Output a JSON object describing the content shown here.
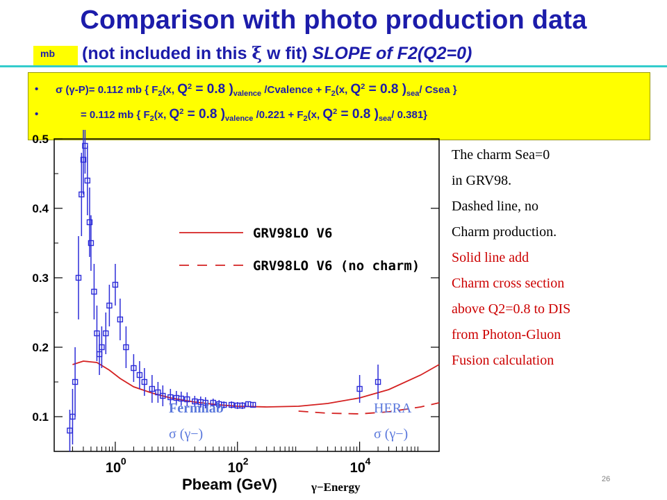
{
  "slide": {
    "title": "Comparison with photo production data",
    "mb_label": "mb",
    "subtitle_a": "(not included in this  ",
    "xi_symbol": "ξ",
    "subtitle_b": " w fit) ",
    "subtitle_c": "SLOPE of F2(Q2=0)",
    "page_number": "26"
  },
  "formula": {
    "line1": {
      "bullet": "•",
      "sigma": "σ (γ-P)= 0.112 mb { F",
      "sub2a": "2",
      "t1": "(x, ",
      "q": "Q",
      "sup2a": "2",
      "t2": " = 0.8 )",
      "subval": "valence",
      "t3": " /Cvalence +   F",
      "sub2b": "2",
      "t4": "(x, ",
      "q2": "Q",
      "sup2b": "2",
      "t5": " = 0.8 )",
      "subsea": "sea",
      "t6": "/ Csea }"
    },
    "line2": {
      "bullet": "•",
      "t0": "= 0.112 mb { F",
      "sub2a": "2",
      "t1": "(x, ",
      "q": "Q",
      "sup2a": "2",
      "t2": " = 0.8 )",
      "subval": "valence",
      "t3": " /0.221  +   F",
      "sub2b": "2",
      "t4": "(x, ",
      "q2": "Q",
      "sup2b": "2",
      "t5": " = 0.8 )",
      "subsea": "sea",
      "t6": "/ 0.381}"
    }
  },
  "side_notes": [
    {
      "text": "The charm Sea=0",
      "color": "#000000"
    },
    {
      "text": "in GRV98.",
      "color": "#000000"
    },
    {
      "text": "Dashed line, no",
      "color": "#000000"
    },
    {
      "text": "Charm production.",
      "color": "#000000"
    },
    {
      "text": "Solid line add",
      "color": "#cc0000"
    },
    {
      "text": "Charm cross section",
      "color": "#cc0000"
    },
    {
      "text": "above Q2=0.8 to DIS",
      "color": "#cc0000"
    },
    {
      "text": " from  Photon-Gluon",
      "color": "#cc0000"
    },
    {
      "text": "Fusion calculation",
      "color": "#cc0000"
    }
  ],
  "annotations": {
    "fermilab": "Fermilab",
    "fermilab_sigma": "σ (γ−)",
    "hera": "HERA",
    "hera_sigma": "σ (γ−)",
    "energy": "γ−Energy"
  },
  "chart_data": {
    "type": "scatter",
    "xlabel": "Pbeam  (GeV)",
    "ylabel": "",
    "x_scale": "log",
    "xlim": [
      0.1,
      200000
    ],
    "ylim": [
      0.05,
      0.5
    ],
    "x_ticks": [
      {
        "value": 1,
        "base": "10",
        "exp": "0"
      },
      {
        "value": 100,
        "base": "10",
        "exp": "2"
      },
      {
        "value": 10000,
        "base": "10",
        "exp": "4"
      }
    ],
    "y_ticks": [
      {
        "value": 0.1,
        "label": "0.1"
      },
      {
        "value": 0.2,
        "label": "0.2"
      },
      {
        "value": 0.3,
        "label": "0.3"
      },
      {
        "value": 0.4,
        "label": "0.4"
      },
      {
        "value": 0.5,
        "label": "0.5"
      }
    ],
    "legend_placement": "center-right",
    "series": [
      {
        "name": "GRV98LO V6",
        "style": "solid",
        "color": "#d42020",
        "x": [
          0.2,
          0.3,
          0.5,
          0.8,
          1.2,
          2,
          4,
          8,
          20,
          50,
          100,
          300,
          1000,
          3000,
          10000,
          30000,
          100000,
          200000
        ],
        "y": [
          0.175,
          0.18,
          0.178,
          0.167,
          0.155,
          0.143,
          0.134,
          0.127,
          0.121,
          0.117,
          0.115,
          0.114,
          0.115,
          0.119,
          0.127,
          0.139,
          0.16,
          0.175
        ]
      },
      {
        "name": "GRV98LO V6 (no charm)",
        "style": "dashed",
        "color": "#d42020",
        "x": [
          1000,
          3000,
          10000,
          30000,
          100000,
          200000
        ],
        "y": [
          0.108,
          0.105,
          0.104,
          0.107,
          0.114,
          0.12
        ]
      },
      {
        "name": "Fermilab data",
        "style": "markers",
        "color": "#2b2bd8",
        "x": [
          0.18,
          0.2,
          0.22,
          0.25,
          0.28,
          0.3,
          0.32,
          0.35,
          0.38,
          0.4,
          0.45,
          0.5,
          0.55,
          0.6,
          0.7,
          0.8,
          1.0,
          1.2,
          1.5,
          2,
          2.5,
          3,
          4,
          5,
          6,
          8,
          10,
          12,
          15,
          20,
          25,
          30,
          40,
          50,
          60,
          80,
          100,
          120,
          150,
          180
        ],
        "y": [
          0.08,
          0.1,
          0.15,
          0.3,
          0.42,
          0.47,
          0.49,
          0.44,
          0.38,
          0.35,
          0.28,
          0.22,
          0.19,
          0.2,
          0.22,
          0.26,
          0.29,
          0.24,
          0.2,
          0.17,
          0.16,
          0.15,
          0.14,
          0.135,
          0.13,
          0.128,
          0.127,
          0.126,
          0.125,
          0.122,
          0.121,
          0.12,
          0.12,
          0.118,
          0.117,
          0.117,
          0.116,
          0.116,
          0.118,
          0.117
        ],
        "err": [
          0.03,
          0.04,
          0.05,
          0.06,
          0.06,
          0.05,
          0.04,
          0.05,
          0.05,
          0.04,
          0.04,
          0.04,
          0.03,
          0.03,
          0.03,
          0.03,
          0.03,
          0.03,
          0.03,
          0.02,
          0.02,
          0.02,
          0.02,
          0.015,
          0.015,
          0.012,
          0.01,
          0.01,
          0.01,
          0.008,
          0.008,
          0.008,
          0.006,
          0.006,
          0.005,
          0.005,
          0.005,
          0.005,
          0.004,
          0.004
        ]
      },
      {
        "name": "HERA data",
        "style": "markers",
        "color": "#2b2bd8",
        "x": [
          10000,
          20000
        ],
        "y": [
          0.14,
          0.15
        ],
        "err": [
          0.02,
          0.025
        ]
      }
    ]
  }
}
